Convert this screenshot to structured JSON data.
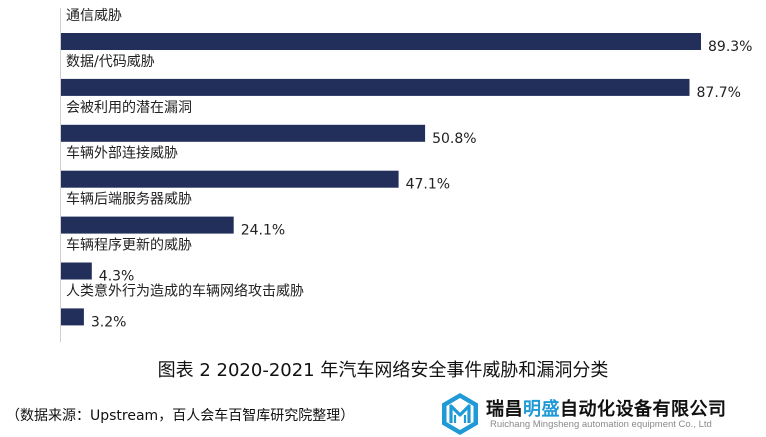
{
  "chart_data": {
    "type": "bar",
    "orientation": "horizontal",
    "categories": [
      "通信威胁",
      "数据/代码威胁",
      "会被利用的潜在漏洞",
      "车辆外部连接威胁",
      "车辆后端服务器威胁",
      "车辆程序更新的威胁",
      "人类意外行为造成的车辆网络攻击威胁"
    ],
    "values": [
      89.3,
      87.7,
      50.8,
      47.1,
      24.1,
      4.3,
      3.2
    ],
    "value_labels": [
      "89.3%",
      "87.7%",
      "50.8%",
      "47.1%",
      "24.1%",
      "4.3%",
      "3.2%"
    ],
    "unit": "%",
    "xlim": [
      0,
      100
    ],
    "bar_color": "#232f5b",
    "grid": false,
    "legend": "none"
  },
  "caption": "图表 2 2020-2021 年汽车网络安全事件威胁和漏洞分类",
  "source": "（数据来源：Upstream，百人会车百智库研究院整理）",
  "logo": {
    "name_part1": "瑞昌",
    "name_highlight": "明盛",
    "name_part2": "自动化设备有限公司",
    "subtitle": "Ruichang Mingsheng automation equipment Co., Ltd",
    "icon": "rm-logo-icon",
    "accent_color": "#1f9ad6"
  }
}
